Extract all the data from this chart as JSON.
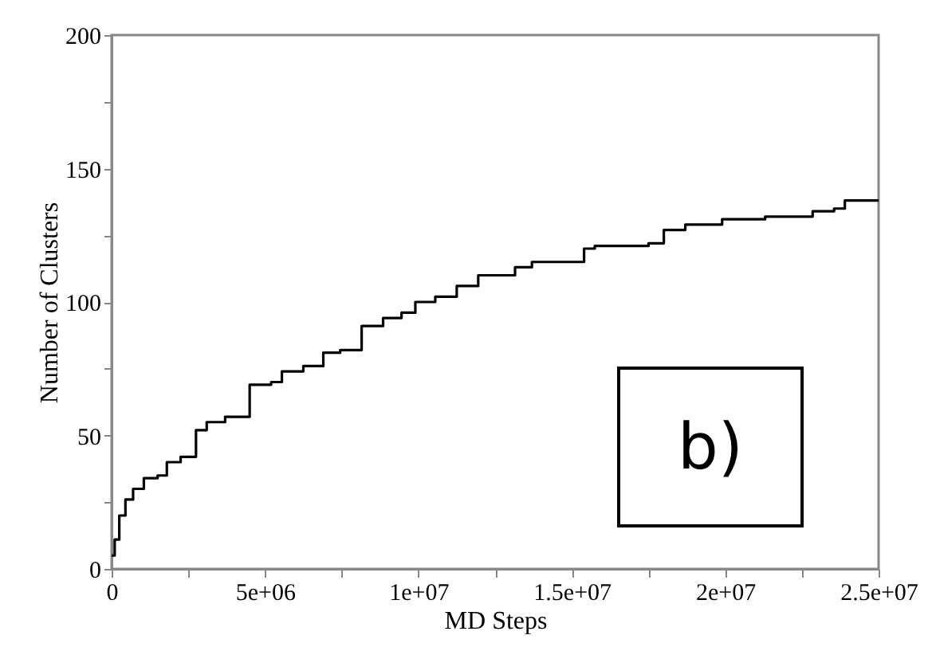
{
  "chart_data": {
    "type": "step",
    "xlabel": "MD Steps",
    "ylabel": "Number of Clusters",
    "annotations": [
      "b)"
    ],
    "x": [
      0,
      100000,
      250000,
      450000,
      700000,
      1050000,
      1500000,
      1800000,
      2250000,
      2750000,
      3100000,
      3700000,
      4500000,
      5200000,
      5550000,
      6250000,
      6900000,
      7450000,
      8150000,
      8850000,
      9450000,
      9900000,
      10550000,
      11250000,
      11950000,
      13150000,
      13700000,
      15400000,
      15750000,
      17500000,
      18000000,
      18700000,
      19900000,
      21300000,
      22850000,
      23550000,
      23900000,
      25000000
    ],
    "series": [
      {
        "color": "#000000",
        "values": [
          5,
          11,
          20,
          26,
          30,
          34,
          35,
          40,
          42,
          52,
          55,
          57,
          69,
          70,
          74,
          76,
          81,
          82,
          91,
          94,
          96,
          100,
          102,
          106,
          110,
          113,
          115,
          120,
          121,
          122,
          127,
          129,
          131,
          132,
          134,
          135,
          138,
          138
        ]
      }
    ],
    "xlim": [
      0,
      25000000
    ],
    "ylim": [
      0,
      200
    ],
    "xticks": [
      {
        "value": 0,
        "label": "0"
      },
      {
        "value": 2500000,
        "label": null
      },
      {
        "value": 5000000,
        "label": "5e+06"
      },
      {
        "value": 7500000,
        "label": null
      },
      {
        "value": 10000000,
        "label": "1e+07"
      },
      {
        "value": 12500000,
        "label": null
      },
      {
        "value": 15000000,
        "label": "1.5e+07"
      },
      {
        "value": 17500000,
        "label": null
      },
      {
        "value": 20000000,
        "label": "2e+07"
      },
      {
        "value": 22500000,
        "label": null
      },
      {
        "value": 25000000,
        "label": "2.5e+07"
      }
    ],
    "yticks": [
      0,
      {
        "value": 25,
        "label": null
      },
      50,
      {
        "value": 75,
        "label": null
      },
      100,
      {
        "value": 125,
        "label": null
      },
      150,
      {
        "value": 175,
        "label": null
      },
      200
    ],
    "grid": false,
    "marker": "none",
    "line_style": "solid"
  }
}
